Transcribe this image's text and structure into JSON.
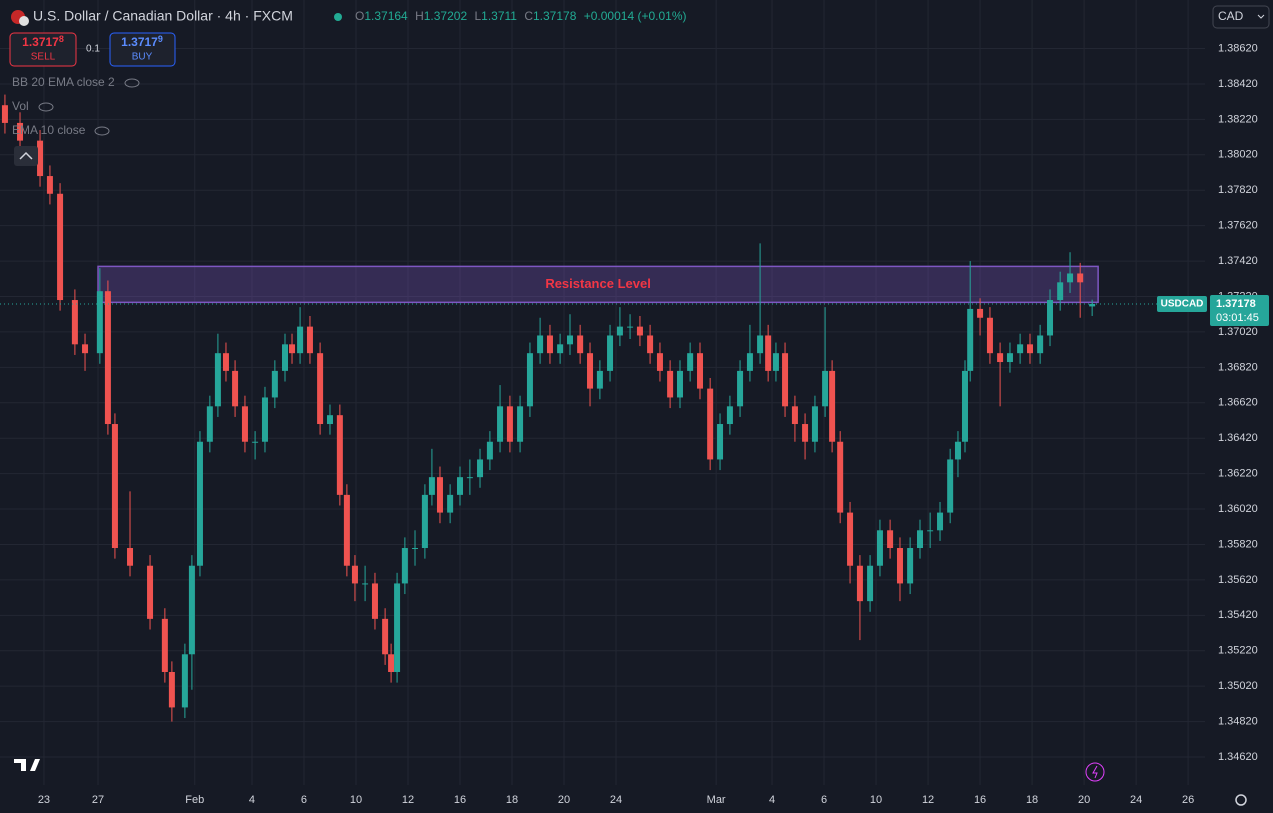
{
  "chart_data": {
    "type": "candlestick",
    "title": "U.S. Dollar / Canadian Dollar · 4h · FXCM",
    "symbol": "USDCAD",
    "countdown": "03:01:45",
    "change": "+0.00014 (+0.01%)",
    "ohlc_letters": [
      "O",
      "H",
      "L",
      "C"
    ],
    "colors": {
      "up": "#26a69a",
      "down": "#ef5350",
      "zone": "#7e57c2",
      "zone_text": "#f23645"
    },
    "grid": true,
    "xlim": [
      -1.69,
      44.65
    ],
    "ylim": [
      1.34462,
      1.38894
    ],
    "xticks": [
      {
        "value": 0,
        "label": "23"
      },
      {
        "value": 2.08,
        "label": "27"
      },
      {
        "value": 5.8,
        "label": "Feb"
      },
      {
        "value": 8,
        "label": "4"
      },
      {
        "value": 10,
        "label": "6"
      },
      {
        "value": 12,
        "label": "10"
      },
      {
        "value": 14,
        "label": "12"
      },
      {
        "value": 16,
        "label": "16"
      },
      {
        "value": 18,
        "label": "18"
      },
      {
        "value": 20,
        "label": "20"
      },
      {
        "value": 22,
        "label": "24"
      },
      {
        "value": 25.85,
        "label": "Mar"
      },
      {
        "value": 28,
        "label": "4"
      },
      {
        "value": 30,
        "label": "6"
      },
      {
        "value": 32,
        "label": "10"
      },
      {
        "value": 34,
        "label": "12"
      },
      {
        "value": 36,
        "label": "16"
      },
      {
        "value": 38,
        "label": "18"
      },
      {
        "value": 40,
        "label": "20"
      },
      {
        "value": 42,
        "label": "24"
      },
      {
        "value": 44,
        "label": "26"
      }
    ],
    "yticks": [
      {
        "value": 1.3462,
        "label": "1.34620"
      },
      {
        "value": 1.3482,
        "label": "1.34820"
      },
      {
        "value": 1.3502,
        "label": "1.35020"
      },
      {
        "value": 1.3522,
        "label": "1.35220"
      },
      {
        "value": 1.3542,
        "label": "1.35420"
      },
      {
        "value": 1.3562,
        "label": "1.35620"
      },
      {
        "value": 1.3582,
        "label": "1.35820"
      },
      {
        "value": 1.3602,
        "label": "1.36020"
      },
      {
        "value": 1.3622,
        "label": "1.36220"
      },
      {
        "value": 1.3642,
        "label": "1.36420"
      },
      {
        "value": 1.3662,
        "label": "1.36620"
      },
      {
        "value": 1.3682,
        "label": "1.36820"
      },
      {
        "value": 1.3702,
        "label": "1.37020"
      },
      {
        "value": 1.3722,
        "label": "1.37220"
      },
      {
        "value": 1.3742,
        "label": "1.37420"
      },
      {
        "value": 1.3762,
        "label": "1.37620"
      },
      {
        "value": 1.3782,
        "label": "1.37820"
      },
      {
        "value": 1.3802,
        "label": "1.38020"
      },
      {
        "value": 1.3822,
        "label": "1.38220"
      },
      {
        "value": 1.3842,
        "label": "1.38420"
      },
      {
        "value": 1.3862,
        "label": "1.38620"
      }
    ],
    "annotations": [
      {
        "text": "Resistance Level",
        "x": [
          2.08,
          40.54
        ],
        "y": [
          1.37187,
          1.3739
        ]
      }
    ],
    "x": [
      -1.5,
      -0.92,
      -0.15,
      0.23,
      0.62,
      1.19,
      1.58,
      2.15,
      2.46,
      2.73,
      3.31,
      4.08,
      4.65,
      4.92,
      5.42,
      5.69,
      6,
      6.38,
      6.69,
      7,
      7.35,
      7.73,
      8.12,
      8.5,
      8.88,
      9.27,
      9.54,
      9.85,
      10.23,
      10.62,
      11,
      11.38,
      11.65,
      11.96,
      12.35,
      12.73,
      13.12,
      13.35,
      13.58,
      13.88,
      14.27,
      14.65,
      14.92,
      15.23,
      15.62,
      16,
      16.38,
      16.77,
      17.15,
      17.54,
      17.92,
      18.31,
      18.69,
      19.08,
      19.46,
      19.85,
      20.23,
      20.62,
      21,
      21.38,
      21.77,
      22.15,
      22.54,
      22.92,
      23.31,
      23.69,
      24.08,
      24.46,
      24.85,
      25.23,
      25.62,
      26,
      26.38,
      26.77,
      27.15,
      27.54,
      27.85,
      28.15,
      28.5,
      28.88,
      29.27,
      29.65,
      30.04,
      30.31,
      30.62,
      31,
      31.38,
      31.77,
      32.15,
      32.54,
      32.92,
      33.31,
      33.69,
      34.08,
      34.46,
      34.85,
      35.15,
      35.42,
      35.62,
      36,
      36.38,
      36.77,
      37.15,
      37.54,
      37.92,
      38.31,
      38.69,
      39.08,
      39.46,
      39.85,
      40.31
    ],
    "open": [
      1.383,
      1.382,
      1.381,
      1.379,
      1.378,
      1.372,
      1.3695,
      1.369,
      1.3725,
      1.365,
      1.358,
      1.357,
      1.354,
      1.351,
      1.349,
      1.352,
      1.357,
      1.364,
      1.366,
      1.369,
      1.368,
      1.366,
      1.364,
      1.364,
      1.3665,
      1.368,
      1.3695,
      1.369,
      1.3705,
      1.369,
      1.365,
      1.3655,
      1.361,
      1.357,
      1.356,
      1.356,
      1.354,
      1.352,
      1.351,
      1.356,
      1.358,
      1.358,
      1.361,
      1.362,
      1.36,
      1.361,
      1.362,
      1.362,
      1.363,
      1.364,
      1.366,
      1.364,
      1.366,
      1.369,
      1.37,
      1.369,
      1.3695,
      1.37,
      1.369,
      1.367,
      1.368,
      1.37,
      1.3705,
      1.3705,
      1.37,
      1.369,
      1.368,
      1.3665,
      1.368,
      1.369,
      1.367,
      1.363,
      1.365,
      1.366,
      1.368,
      1.369,
      1.37,
      1.368,
      1.369,
      1.366,
      1.365,
      1.364,
      1.366,
      1.368,
      1.364,
      1.36,
      1.357,
      1.355,
      1.357,
      1.359,
      1.358,
      1.356,
      1.358,
      1.359,
      1.359,
      1.36,
      1.363,
      1.364,
      1.368,
      1.3715,
      1.371,
      1.369,
      1.3685,
      1.369,
      1.3695,
      1.369,
      1.37,
      1.372,
      1.373,
      1.3735,
      1.37164
    ],
    "high": [
      1.3836,
      1.3826,
      1.3816,
      1.3796,
      1.3786,
      1.3726,
      1.3701,
      1.3738,
      1.3731,
      1.3656,
      1.3612,
      1.3576,
      1.3546,
      1.3516,
      1.3526,
      1.3576,
      1.3646,
      1.3666,
      1.3701,
      1.3696,
      1.3686,
      1.3666,
      1.3646,
      1.3671,
      1.3686,
      1.3701,
      1.3701,
      1.3716,
      1.3711,
      1.3696,
      1.3661,
      1.3661,
      1.3616,
      1.3576,
      1.357,
      1.3566,
      1.3546,
      1.3526,
      1.3566,
      1.3586,
      1.359,
      1.3616,
      1.3636,
      1.3626,
      1.3616,
      1.3626,
      1.363,
      1.3636,
      1.3646,
      1.3672,
      1.3666,
      1.3666,
      1.3696,
      1.371,
      1.3706,
      1.3701,
      1.3712,
      1.3706,
      1.3696,
      1.3686,
      1.3706,
      1.3716,
      1.3712,
      1.3711,
      1.3706,
      1.3696,
      1.3686,
      1.3686,
      1.3696,
      1.3696,
      1.3676,
      1.3656,
      1.3666,
      1.3686,
      1.3706,
      1.3752,
      1.3706,
      1.3696,
      1.3696,
      1.3666,
      1.3656,
      1.3666,
      1.3716,
      1.3686,
      1.3646,
      1.3606,
      1.3576,
      1.3576,
      1.3596,
      1.3596,
      1.3586,
      1.3586,
      1.3596,
      1.36,
      1.3606,
      1.3636,
      1.3646,
      1.3686,
      1.3742,
      1.3721,
      1.3716,
      1.3696,
      1.3696,
      1.3701,
      1.3701,
      1.3706,
      1.3726,
      1.3736,
      1.3747,
      1.3741,
      1.37202
    ],
    "low": [
      1.3814,
      1.3804,
      1.3784,
      1.3774,
      1.3714,
      1.3689,
      1.368,
      1.3684,
      1.3644,
      1.3574,
      1.3564,
      1.3534,
      1.3504,
      1.3482,
      1.3484,
      1.35,
      1.3564,
      1.3634,
      1.3654,
      1.3674,
      1.3654,
      1.3634,
      1.363,
      1.3634,
      1.3659,
      1.3674,
      1.3684,
      1.3684,
      1.3684,
      1.3644,
      1.3644,
      1.3604,
      1.3564,
      1.355,
      1.355,
      1.3534,
      1.3514,
      1.3504,
      1.3504,
      1.3554,
      1.357,
      1.3574,
      1.3604,
      1.3594,
      1.3594,
      1.3604,
      1.361,
      1.3614,
      1.3624,
      1.3634,
      1.3634,
      1.3634,
      1.3654,
      1.3684,
      1.3684,
      1.3684,
      1.3689,
      1.3684,
      1.366,
      1.3664,
      1.3674,
      1.3694,
      1.3698,
      1.3694,
      1.3684,
      1.3674,
      1.3659,
      1.3659,
      1.3674,
      1.3664,
      1.3624,
      1.3624,
      1.3644,
      1.3654,
      1.3674,
      1.3684,
      1.3674,
      1.3674,
      1.3654,
      1.364,
      1.363,
      1.3634,
      1.3654,
      1.3634,
      1.3594,
      1.356,
      1.3528,
      1.3544,
      1.3564,
      1.3574,
      1.355,
      1.3554,
      1.3574,
      1.358,
      1.3584,
      1.3594,
      1.362,
      1.3634,
      1.3674,
      1.37,
      1.3684,
      1.366,
      1.3679,
      1.3684,
      1.3684,
      1.3684,
      1.3694,
      1.3714,
      1.3724,
      1.371,
      1.3711
    ],
    "close": [
      1.382,
      1.381,
      1.379,
      1.378,
      1.372,
      1.3695,
      1.369,
      1.3725,
      1.365,
      1.358,
      1.357,
      1.354,
      1.351,
      1.349,
      1.352,
      1.357,
      1.364,
      1.366,
      1.369,
      1.368,
      1.366,
      1.364,
      1.364,
      1.3665,
      1.368,
      1.3695,
      1.369,
      1.3705,
      1.369,
      1.365,
      1.3655,
      1.361,
      1.357,
      1.356,
      1.356,
      1.354,
      1.352,
      1.351,
      1.356,
      1.358,
      1.358,
      1.361,
      1.362,
      1.36,
      1.361,
      1.362,
      1.362,
      1.363,
      1.364,
      1.366,
      1.364,
      1.366,
      1.369,
      1.37,
      1.369,
      1.3695,
      1.37,
      1.369,
      1.367,
      1.368,
      1.37,
      1.3705,
      1.3705,
      1.37,
      1.369,
      1.368,
      1.3665,
      1.368,
      1.369,
      1.367,
      1.363,
      1.365,
      1.366,
      1.368,
      1.369,
      1.37,
      1.368,
      1.369,
      1.366,
      1.365,
      1.364,
      1.366,
      1.368,
      1.364,
      1.36,
      1.357,
      1.355,
      1.357,
      1.359,
      1.358,
      1.356,
      1.358,
      1.359,
      1.359,
      1.36,
      1.363,
      1.364,
      1.368,
      1.3715,
      1.371,
      1.369,
      1.3685,
      1.369,
      1.3695,
      1.369,
      1.37,
      1.372,
      1.373,
      1.3735,
      1.373,
      1.37178
    ]
  },
  "ui": {
    "currency": "CAD",
    "sell": {
      "price": "1.3717",
      "pip": "8",
      "label": "SELL"
    },
    "spread": "0.1",
    "buy": {
      "price": "1.3717",
      "pip": "9",
      "label": "BUY"
    },
    "indicators": [
      "BB 20 EMA close 2",
      "Vol",
      "EMA 10 close"
    ]
  }
}
